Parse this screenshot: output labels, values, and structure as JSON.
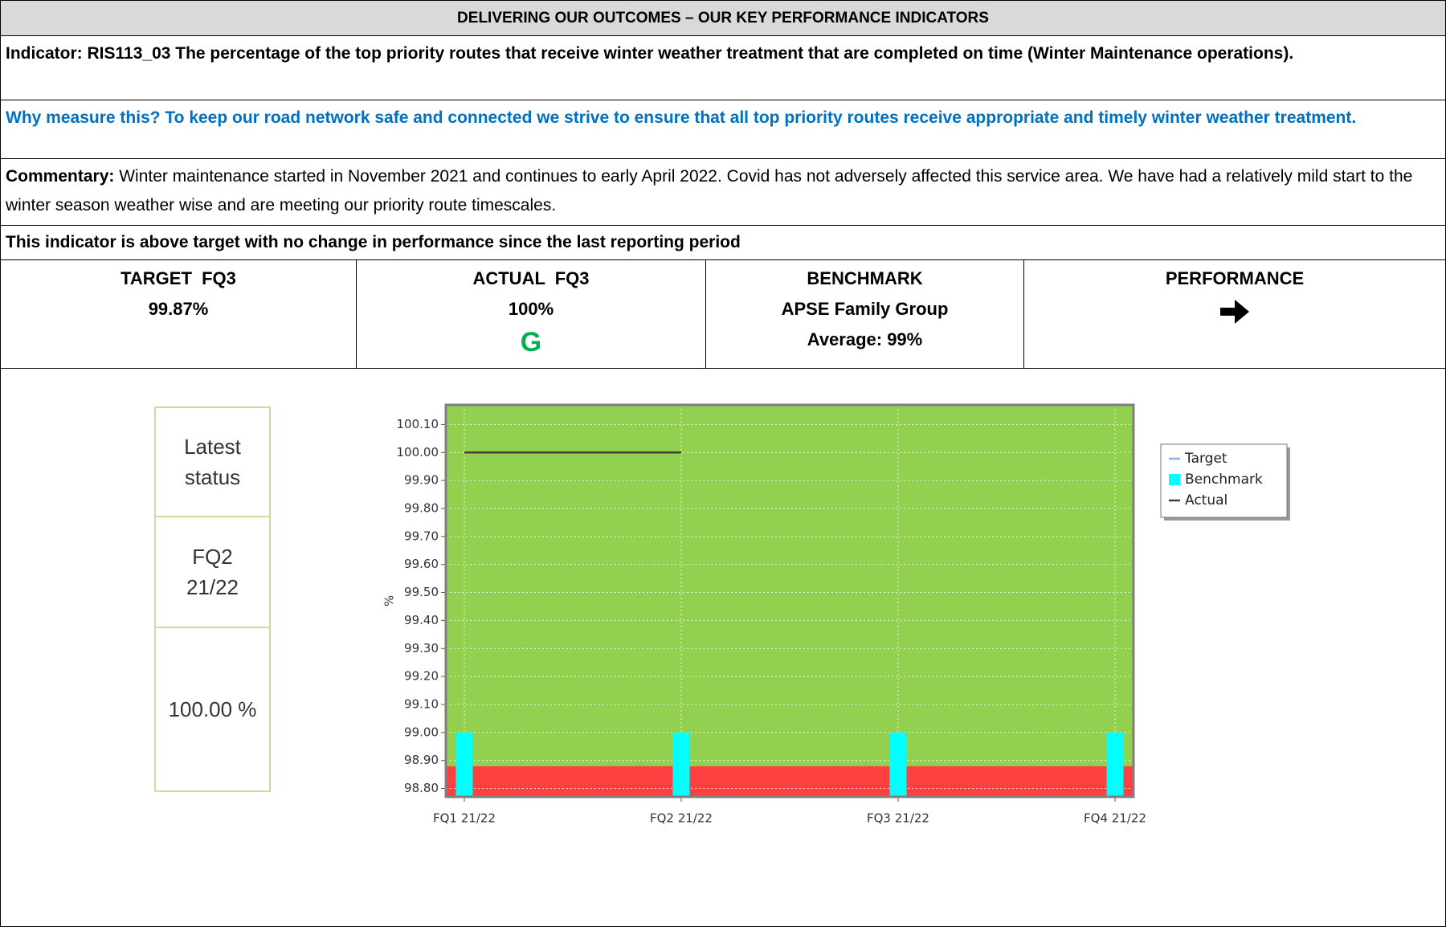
{
  "header": {
    "title": "DELIVERING OUR OUTCOMES – OUR KEY PERFORMANCE INDICATORS"
  },
  "indicator": "Indicator: RIS113_03 The percentage of the top priority routes that receive winter weather treatment that are completed on time (Winter Maintenance operations).",
  "why": "Why measure this? To keep our road network safe and connected we strive to ensure that all top priority routes receive appropriate and timely winter weather treatment.",
  "commentary": {
    "label": "Commentary:",
    "text": "Winter maintenance started in November 2021 and continues to early April 2022. Covid has not adversely affected this service area. We have had a relatively mild start to the winter season weather wise and are meeting our priority route timescales."
  },
  "summary": "This indicator is above target with no change in performance since the last reporting period",
  "kpis": [
    {
      "heading": "TARGET  FQ3",
      "value": "99.87%"
    },
    {
      "heading": "ACTUAL  FQ3",
      "value": "100%",
      "rag": "G"
    },
    {
      "heading": "BENCHMARK",
      "value": "APSE Family Group",
      "note": "Average: 99%"
    },
    {
      "heading": "PERFORMANCE"
    }
  ],
  "status": {
    "label": [
      "Latest",
      "status"
    ],
    "period": [
      "FQ2",
      "21/22"
    ],
    "value": "100.00 %"
  },
  "chart_data": {
    "type": "bar_line",
    "categories": [
      "FQ1 21/22",
      "FQ2 21/22",
      "FQ3 21/22",
      "FQ4 21/22"
    ],
    "y_label": "%",
    "ylim": [
      98.77,
      100.17
    ],
    "yticks": [
      {
        "value": 98.8,
        "label": "98.80"
      },
      {
        "value": 98.9,
        "label": "98.90"
      },
      {
        "value": 99.0,
        "label": "99.00"
      },
      {
        "value": 99.1,
        "label": "99.10"
      },
      {
        "value": 99.2,
        "label": "99.20"
      },
      {
        "value": 99.3,
        "label": "99.30"
      },
      {
        "value": 99.4,
        "label": "99.40"
      },
      {
        "value": 99.5,
        "label": "99.50"
      },
      {
        "value": 99.6,
        "label": "99.60"
      },
      {
        "value": 99.7,
        "label": "99.70"
      },
      {
        "value": 99.8,
        "label": "99.80"
      },
      {
        "value": 99.9,
        "label": "99.90"
      },
      {
        "value": 100.0,
        "label": "100.00"
      },
      {
        "value": 100.1,
        "label": "100.10"
      }
    ],
    "bands": [
      {
        "from": 98.77,
        "to": 98.88,
        "color": "#ff4040"
      },
      {
        "from": 98.88,
        "to": 100.17,
        "color": "#92d050"
      }
    ],
    "grid": true,
    "legend": "right",
    "series": [
      {
        "name": "Target",
        "type": "line",
        "color": "#8db4e2",
        "values": [
          null,
          null,
          null,
          null
        ]
      },
      {
        "name": "Benchmark",
        "type": "bar",
        "color": "#00ffff",
        "values": [
          99,
          99,
          99,
          99
        ]
      },
      {
        "name": "Actual",
        "type": "line",
        "color": "#404040",
        "values": [
          100,
          100,
          null,
          null
        ]
      }
    ]
  }
}
